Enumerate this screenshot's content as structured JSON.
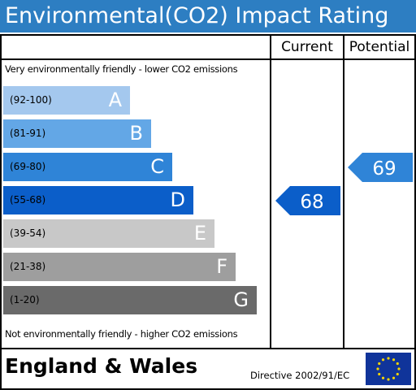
{
  "header": {
    "title": "Environmental(CO2) Impact Rating"
  },
  "columns": {
    "current": "Current",
    "potential": "Potential"
  },
  "notes": {
    "top": "Very environmentally friendly - lower CO2 emissions",
    "bottom": "Not environmentally friendly - higher CO2 emissions"
  },
  "footer": {
    "region": "England & Wales",
    "directive": "Directive 2002/91/EC",
    "flag": "eu-flag-icon"
  },
  "chart_data": {
    "type": "bar",
    "bands": [
      {
        "range": "(92-100)",
        "letter": "A",
        "color": "#a4c8ee"
      },
      {
        "range": "(81-91)",
        "letter": "B",
        "color": "#63a7e6"
      },
      {
        "range": "(69-80)",
        "letter": "C",
        "color": "#2f84d7"
      },
      {
        "range": "(55-68)",
        "letter": "D",
        "color": "#0b5ec9"
      },
      {
        "range": "(39-54)",
        "letter": "E",
        "color": "#c8c8c8"
      },
      {
        "range": "(21-38)",
        "letter": "F",
        "color": "#9e9e9e"
      },
      {
        "range": "(1-20)",
        "letter": "G",
        "color": "#6a6a6a"
      }
    ],
    "ratings": {
      "current": {
        "value": "68",
        "band": "D",
        "color": "#0b5ec9"
      },
      "potential": {
        "value": "69",
        "band": "C",
        "color": "#2f84d7"
      }
    }
  }
}
